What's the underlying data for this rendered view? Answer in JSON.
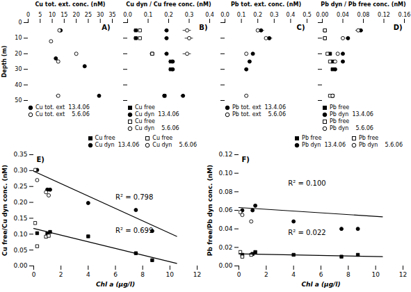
{
  "chart_data": [
    {
      "type": "scatter",
      "xlabel": "Cu tot. ext. conc. (nM)",
      "ylabel": "Depth (m)",
      "annotations": [
        "A)"
      ],
      "xlim": [
        0,
        35
      ],
      "xticks": [
        0,
        5,
        10,
        15,
        20,
        25,
        30,
        35
      ],
      "ylim": [
        50,
        0
      ],
      "yticks": [
        0,
        10,
        20,
        30,
        40,
        50
      ],
      "series": [
        {
          "name": "Cu tot. ext  13.4.06",
          "color": "black",
          "marker": "circle",
          "x": [
            13.5,
            11.5,
            23.5,
            29.5
          ],
          "y": [
            5,
            23,
            28,
            47
          ],
          "xerr": [
            0.5,
            0.5,
            0.5,
            0.6
          ]
        },
        {
          "name": "Cu tot. ext    5.6.06",
          "color": "black",
          "marker": "open_circle",
          "x": [
            13.0,
            9.5,
            20.0,
            12.5,
            12.5
          ],
          "y": [
            5,
            12,
            20,
            25,
            47
          ],
          "xerr": [
            0.4,
            0.4,
            0.6,
            0.5,
            0.8
          ]
        }
      ]
    },
    {
      "type": "scatter",
      "xlabel": "Cu dyn / Cu free conc. (nM)",
      "annotations": [
        "B)"
      ],
      "tick_labels": "x",
      "xlim": [
        0.0,
        0.4
      ],
      "xticks": [
        {
          "value": 0,
          "label": "0.0"
        },
        0.1,
        0.2,
        0.3,
        0.4
      ],
      "ylim": [
        50,
        0
      ],
      "yticks": [
        0,
        10,
        20,
        30,
        40,
        50
      ],
      "series": [
        {
          "name": "Cu free",
          "color": "black",
          "marker": "square",
          "x": [
            0.04,
            0.04,
            0.12,
            0.21,
            0.21,
            0.18
          ],
          "y": [
            5,
            10,
            20,
            25,
            30,
            47
          ],
          "xerr": [
            0.01,
            0.01,
            0.01,
            0.01,
            0.01,
            0.01
          ]
        },
        {
          "name": "Cu dyn  13.4.06",
          "color": "black",
          "marker": "circle",
          "x": [
            0.19,
            0.19,
            0.19,
            0.22,
            0.22,
            0.18,
            0.27
          ],
          "y": [
            5,
            10,
            20,
            25,
            30,
            47,
            47
          ],
          "xerr": [
            0.01,
            0.01,
            0.01,
            0.01,
            0.01,
            0.01,
            0.01
          ]
        },
        {
          "name": "Cu free",
          "color": "black",
          "marker": "open_square",
          "x": [
            0.06,
            0.06,
            0.12
          ],
          "y": [
            5,
            10,
            20
          ],
          "xerr": [
            0.01,
            0.01,
            0.01
          ]
        },
        {
          "name": "Cu dyn    5.6.06",
          "color": "black",
          "marker": "open_circle",
          "x": [
            0.29,
            0.3,
            0.29
          ],
          "y": [
            5,
            10,
            20
          ],
          "xerr": [
            0.02,
            0.02,
            0.02
          ]
        }
      ]
    },
    {
      "type": "scatter",
      "xlabel": "Pb tot. ext. conc. (nM)",
      "annotations": [
        "C)"
      ],
      "tick_labels": "x",
      "xlim": [
        0,
        0.5
      ],
      "xticks": [
        {
          "value": 0,
          "label": "0.0"
        },
        0.1,
        0.2,
        0.3,
        0.4,
        0.5
      ],
      "ylim": [
        50,
        0
      ],
      "yticks": [
        0,
        10,
        20,
        30,
        40,
        50
      ],
      "series": [
        {
          "name": "Pb tot. ext  13.4.06",
          "color": "black",
          "marker": "circle",
          "x": [
            0.22,
            0.27,
            0.17,
            0.15,
            0.13
          ],
          "y": [
            5,
            10,
            20,
            25,
            30
          ],
          "xerr": [
            0.02,
            0.02,
            0.01,
            0.01,
            0.01
          ]
        },
        {
          "name": "Pb tot. ext    5.6.06",
          "color": "black",
          "marker": "open_circle",
          "x": [
            0.2,
            0.25,
            0.13,
            0.13
          ],
          "y": [
            5,
            10,
            20,
            47
          ],
          "xerr": [
            0.0,
            0.0,
            0.0,
            0.01
          ]
        }
      ]
    },
    {
      "type": "scatter",
      "xlabel": "Pb dyn / Pb free conc. (nM)",
      "annotations": [
        "D)"
      ],
      "tick_labels": "x",
      "xlim": [
        0.0,
        0.16
      ],
      "xticks": [
        {
          "value": 0,
          "label": "0.00"
        },
        0.04,
        0.08,
        0.12,
        0.16
      ],
      "ylim": [
        50,
        0
      ],
      "yticks": [
        0,
        10,
        20,
        30,
        40,
        50
      ],
      "series": [
        {
          "name": "Pb free",
          "color": "black",
          "marker": "square",
          "x": [
            0.005,
            0.005,
            0.015,
            0.02,
            0.02,
            0.02
          ],
          "y": [
            5,
            10,
            20,
            25,
            30,
            47
          ],
          "xerr": [
            0.001,
            0.001,
            0.001,
            0.002,
            0.002,
            0.002
          ]
        },
        {
          "name": "Pb dyn  13.4.06",
          "color": "black",
          "marker": "circle",
          "x": [
            0.075,
            0.05,
            0.04,
            0.04,
            0.025,
            0.02
          ],
          "y": [
            5,
            10,
            20,
            25,
            30,
            47
          ],
          "xerr": [
            0.005,
            0.004,
            0.003,
            0.003,
            0.002,
            0.002
          ]
        },
        {
          "name": "Pb free",
          "color": "black",
          "marker": "open_square",
          "x": [
            0.005,
            0.005,
            0.01,
            0.015,
            0.015
          ],
          "y": [
            5,
            10,
            20,
            25,
            47
          ],
          "xerr": [
            0.001,
            0.001,
            0.001,
            0.001,
            0.001
          ]
        },
        {
          "name": "Pb dyn    5.6.06",
          "color": "black",
          "marker": "open_circle",
          "x": [
            0.07,
            0.04,
            0.03,
            0.025,
            0.02
          ],
          "y": [
            5,
            10,
            20,
            25,
            47
          ],
          "xerr": [
            0.005,
            0.003,
            0.002,
            0.002,
            0.002
          ]
        }
      ]
    },
    {
      "type": "scatter",
      "xlabel": "Chl a (μg/l)",
      "ylabel": "Cu free/Cu dyn conc. (nM)",
      "annotations": [
        "E)",
        "R² = 0.798",
        "R² = 0.699"
      ],
      "xlim": [
        0,
        12
      ],
      "xticks": [
        0,
        2,
        4,
        6,
        8,
        10,
        12
      ],
      "ylim": [
        0.0,
        0.35
      ],
      "yticks": [
        {
          "value": 0,
          "label": "0.00"
        },
        0.05,
        {
          "value": 0.1,
          "label": "0.10"
        },
        0.15,
        {
          "value": 0.2,
          "label": "0.20"
        },
        0.25,
        {
          "value": 0.3,
          "label": "0.30"
        },
        0.35
      ],
      "series": [
        {
          "name": "Cu free",
          "color": "black",
          "marker": "square",
          "x": [
            0.25,
            1.0,
            1.2,
            4.0,
            7.5,
            8.7
          ],
          "y": [
            0.103,
            0.102,
            0.107,
            0.093,
            0.04,
            0.018
          ]
        },
        {
          "name": "Cu dyn  13.4.06",
          "color": "black",
          "marker": "circle",
          "x": [
            0.25,
            1.0,
            1.2,
            4.0,
            7.5,
            8.7
          ],
          "y": [
            0.302,
            0.24,
            0.24,
            0.198,
            0.176,
            0.11
          ]
        },
        {
          "name": "Cu free",
          "color": "black",
          "marker": "open_square",
          "x": [
            0.1,
            0.25,
            0.9,
            1.1
          ],
          "y": [
            0.135,
            0.062,
            0.092,
            0.095
          ]
        },
        {
          "name": "Cu dyn    5.6.06",
          "color": "black",
          "marker": "open_circle",
          "x": [
            0.1,
            0.25,
            0.9,
            1.1
          ],
          "y": [
            0.302,
            0.27,
            0.232,
            0.222
          ]
        },
        {
          "type": "line",
          "color": "black",
          "line_style": "solid",
          "x": [
            0.0,
            10.5
          ],
          "y": [
            0.298,
            0.093
          ]
        },
        {
          "type": "line",
          "color": "black",
          "line_style": "solid",
          "x": [
            0.0,
            10.5
          ],
          "y": [
            0.118,
            0.008
          ]
        }
      ]
    },
    {
      "type": "scatter",
      "xlabel": "Chl a (μg/l)",
      "ylabel": "Pb free/Pb dyn conc. (nM)",
      "annotations": [
        "F)",
        "R² = 0.100",
        "R² = 0.022"
      ],
      "xlim": [
        0,
        12
      ],
      "xticks": [
        0,
        2,
        4,
        6,
        8,
        10,
        12
      ],
      "ylim": [
        0.0,
        0.12
      ],
      "yticks": [
        {
          "value": 0,
          "label": "0.00"
        },
        0.02,
        0.04,
        0.06,
        0.08,
        {
          "value": 0.1,
          "label": "0.10"
        },
        0.12
      ],
      "series": [
        {
          "name": "Pb free",
          "color": "black",
          "marker": "square",
          "x": [
            0.25,
            1.0,
            1.2,
            4.0,
            7.5,
            8.7
          ],
          "y": [
            0.012,
            0.013,
            0.015,
            0.012,
            0.01,
            0.012
          ]
        },
        {
          "name": "Pb dyn  13.4.06",
          "color": "black",
          "marker": "circle",
          "x": [
            0.25,
            1.0,
            1.2,
            4.0,
            7.5,
            8.7
          ],
          "y": [
            0.06,
            0.06,
            0.065,
            0.048,
            0.04,
            0.04
          ]
        },
        {
          "name": "Pb free",
          "color": "black",
          "marker": "open_square",
          "x": [
            0.1,
            0.25,
            0.9
          ],
          "y": [
            0.015,
            0.01,
            0.012
          ]
        },
        {
          "name": "Pb dyn    5.6.06",
          "color": "black",
          "marker": "open_circle",
          "x": [
            0.1,
            0.25,
            0.9
          ],
          "y": [
            0.058,
            0.055,
            0.048
          ]
        },
        {
          "type": "line",
          "color": "black",
          "line_style": "solid",
          "x": [
            0.0,
            10.5
          ],
          "y": [
            0.063,
            0.053
          ]
        },
        {
          "type": "line",
          "color": "black",
          "line_style": "solid",
          "x": [
            0.0,
            10.5
          ],
          "y": [
            0.013,
            0.01
          ]
        }
      ]
    }
  ]
}
